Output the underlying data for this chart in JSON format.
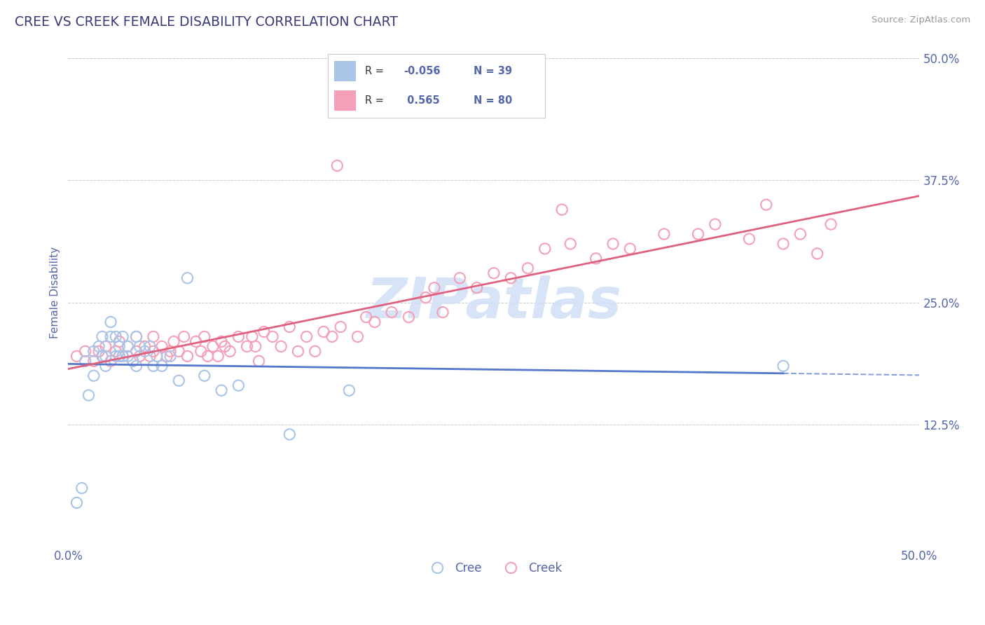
{
  "title": "CREE VS CREEK FEMALE DISABILITY CORRELATION CHART",
  "source": "Source: ZipAtlas.com",
  "ylabel": "Female Disability",
  "xlim": [
    0.0,
    0.5
  ],
  "ylim": [
    0.0,
    0.52
  ],
  "yticks": [
    0.125,
    0.25,
    0.375,
    0.5
  ],
  "ytick_labels": [
    "12.5%",
    "25.0%",
    "37.5%",
    "50.0%"
  ],
  "xticks": [
    0.0,
    0.125,
    0.25,
    0.375,
    0.5
  ],
  "xtick_labels": [
    "0.0%",
    "",
    "",
    "",
    "50.0%"
  ],
  "cree_color": "#aac4e8",
  "creek_color": "#f5a0b8",
  "cree_line_color": "#5577cc",
  "creek_line_color": "#e06080",
  "watermark_color": "#d0dff5",
  "watermark": "ZIPatlas",
  "title_color": "#3a3a7a",
  "axis_label_color": "#5566aa",
  "tick_color": "#5566aa",
  "grid_color": "#cccccc",
  "background_color": "#ffffff",
  "legend_text_color": "#5566aa",
  "legend_R_color": "#333333",
  "cree_R": "-0.056",
  "cree_N": "39",
  "creek_R": "0.565",
  "creek_N": "80",
  "cree_x": [
    0.005,
    0.008,
    0.01,
    0.012,
    0.015,
    0.015,
    0.018,
    0.02,
    0.02,
    0.022,
    0.022,
    0.025,
    0.025,
    0.028,
    0.028,
    0.03,
    0.03,
    0.032,
    0.032,
    0.035,
    0.035,
    0.038,
    0.04,
    0.04,
    0.042,
    0.045,
    0.048,
    0.05,
    0.052,
    0.055,
    0.06,
    0.065,
    0.07,
    0.08,
    0.09,
    0.1,
    0.13,
    0.165,
    0.42
  ],
  "cree_y": [
    0.045,
    0.06,
    0.19,
    0.155,
    0.2,
    0.175,
    0.205,
    0.195,
    0.215,
    0.185,
    0.195,
    0.23,
    0.215,
    0.195,
    0.215,
    0.195,
    0.205,
    0.195,
    0.215,
    0.195,
    0.205,
    0.19,
    0.185,
    0.215,
    0.205,
    0.2,
    0.205,
    0.185,
    0.195,
    0.185,
    0.195,
    0.17,
    0.275,
    0.175,
    0.16,
    0.165,
    0.115,
    0.16,
    0.185
  ],
  "creek_x": [
    0.005,
    0.01,
    0.015,
    0.018,
    0.02,
    0.022,
    0.025,
    0.028,
    0.03,
    0.03,
    0.032,
    0.035,
    0.038,
    0.04,
    0.04,
    0.042,
    0.045,
    0.048,
    0.05,
    0.05,
    0.055,
    0.058,
    0.06,
    0.062,
    0.065,
    0.068,
    0.07,
    0.075,
    0.078,
    0.08,
    0.082,
    0.085,
    0.088,
    0.09,
    0.092,
    0.095,
    0.1,
    0.105,
    0.108,
    0.11,
    0.112,
    0.115,
    0.12,
    0.125,
    0.13,
    0.135,
    0.14,
    0.145,
    0.15,
    0.155,
    0.16,
    0.17,
    0.175,
    0.18,
    0.19,
    0.2,
    0.21,
    0.215,
    0.22,
    0.23,
    0.24,
    0.25,
    0.26,
    0.27,
    0.28,
    0.295,
    0.31,
    0.32,
    0.33,
    0.35,
    0.37,
    0.38,
    0.4,
    0.41,
    0.42,
    0.43,
    0.44,
    0.448,
    0.158,
    0.29
  ],
  "creek_y": [
    0.195,
    0.2,
    0.19,
    0.2,
    0.195,
    0.205,
    0.19,
    0.2,
    0.195,
    0.21,
    0.195,
    0.205,
    0.19,
    0.2,
    0.215,
    0.195,
    0.205,
    0.195,
    0.2,
    0.215,
    0.205,
    0.195,
    0.2,
    0.21,
    0.2,
    0.215,
    0.195,
    0.21,
    0.2,
    0.215,
    0.195,
    0.205,
    0.195,
    0.21,
    0.205,
    0.2,
    0.215,
    0.205,
    0.215,
    0.205,
    0.19,
    0.22,
    0.215,
    0.205,
    0.225,
    0.2,
    0.215,
    0.2,
    0.22,
    0.215,
    0.225,
    0.215,
    0.235,
    0.23,
    0.24,
    0.235,
    0.255,
    0.265,
    0.24,
    0.275,
    0.265,
    0.28,
    0.275,
    0.285,
    0.305,
    0.31,
    0.295,
    0.31,
    0.305,
    0.32,
    0.32,
    0.33,
    0.315,
    0.35,
    0.31,
    0.32,
    0.3,
    0.33,
    0.39,
    0.345
  ],
  "cree_line_x0": 0.0,
  "cree_line_x1": 0.42,
  "cree_line_xdash0": 0.42,
  "cree_line_xdash1": 0.5,
  "creek_line_x0": 0.0,
  "creek_line_x1": 0.5
}
